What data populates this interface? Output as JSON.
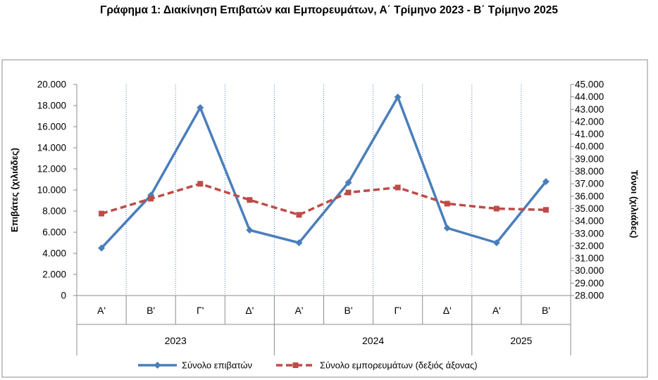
{
  "chart_data": {
    "type": "line",
    "title": "Γράφημα 1: Διακίνηση Επιβατών και Εμπορευμάτων, Α΄ Τρίμηνο 2023 - Β΄ Τρίμηνο 2025",
    "ylabel": "Επιβάτες  (χιλιάδες)",
    "y2label": "Τόνοι  (χιλιάδες)",
    "categories": [
      "Α'",
      "Β'",
      "Γ'",
      "Δ'",
      "Α'",
      "Β'",
      "Γ'",
      "Δ'",
      "Α'",
      "Β'"
    ],
    "year_groups": [
      {
        "label": "2023",
        "span": 4
      },
      {
        "label": "2024",
        "span": 4
      },
      {
        "label": "2025",
        "span": 2
      }
    ],
    "ylim": [
      0,
      20000
    ],
    "y_ticks": [
      "0",
      "2.000",
      "4.000",
      "6.000",
      "8.000",
      "10.000",
      "12.000",
      "14.000",
      "16.000",
      "18.000",
      "20.000"
    ],
    "y2lim": [
      28000,
      45000
    ],
    "y2_ticks": [
      "28.000",
      "29.000",
      "30.000",
      "31.000",
      "32.000",
      "33.000",
      "34.000",
      "35.000",
      "36.000",
      "37.000",
      "38.000",
      "39.000",
      "40.000",
      "41.000",
      "42.000",
      "43.000",
      "44.000",
      "45.000"
    ],
    "series": [
      {
        "name": "Σύνολο επιβατών",
        "axis": "left",
        "color": "#4a7ebb",
        "style": "solid",
        "values": [
          4500,
          9500,
          17800,
          6200,
          5000,
          10700,
          18800,
          6400,
          5000,
          10800
        ]
      },
      {
        "name": "Σύνολο εμπορευμάτων (δεξιός άξονας)",
        "axis": "right",
        "color": "#be4b48",
        "style": "dashed",
        "values": [
          34600,
          35800,
          37000,
          35700,
          34500,
          36300,
          36700,
          35400,
          35000,
          34900
        ]
      }
    ],
    "grid": "vertical dotted",
    "legend_position": "bottom"
  }
}
